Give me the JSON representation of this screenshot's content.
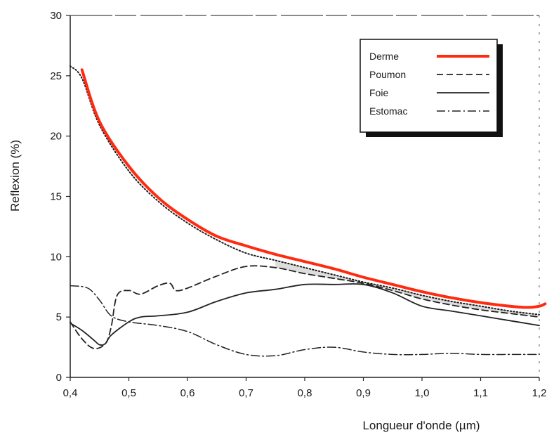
{
  "chart_data": {
    "type": "line",
    "title": "",
    "xlabel": "Longueur d'onde (µm)",
    "ylabel": "Reflexion (%)",
    "xlim": [
      0.4,
      1.2
    ],
    "ylim": [
      0,
      30
    ],
    "xticks": [
      "0,4",
      "0,5",
      "0,6",
      "0,7",
      "0,8",
      "0,9",
      "1,0",
      "1,1",
      "1,2"
    ],
    "yticks": [
      "0",
      "5",
      "10",
      "15",
      "20",
      "25",
      "30"
    ],
    "grid": false,
    "legend_position": "top-right",
    "series": [
      {
        "name": "Derme",
        "color": "#ff2a10",
        "style": "solid-thick",
        "x": [
          0.42,
          0.45,
          0.5,
          0.55,
          0.6,
          0.65,
          0.7,
          0.75,
          0.8,
          0.85,
          0.9,
          0.95,
          1.0,
          1.05,
          1.1,
          1.15,
          1.18,
          1.2,
          1.21
        ],
        "y": [
          25.5,
          21.2,
          17.5,
          14.9,
          13.1,
          11.7,
          10.9,
          10.2,
          9.6,
          9.0,
          8.3,
          7.7,
          7.1,
          6.6,
          6.2,
          5.9,
          5.8,
          5.9,
          6.1
        ]
      },
      {
        "name": "Poumon",
        "color": "#222222",
        "style": "dashed",
        "x": [
          0.4,
          0.42,
          0.44,
          0.46,
          0.47,
          0.48,
          0.5,
          0.52,
          0.55,
          0.57,
          0.58,
          0.6,
          0.65,
          0.7,
          0.75,
          0.8,
          0.85,
          0.9,
          0.95,
          1.0,
          1.05,
          1.1,
          1.15,
          1.2
        ],
        "y": [
          4.6,
          3.2,
          2.4,
          2.8,
          4.2,
          6.8,
          7.2,
          6.9,
          7.6,
          7.8,
          7.2,
          7.4,
          8.4,
          9.2,
          9.1,
          8.6,
          8.2,
          7.8,
          7.2,
          6.5,
          6.0,
          5.6,
          5.3,
          5.0
        ]
      },
      {
        "name": "Foie",
        "color": "#222222",
        "style": "solid",
        "x": [
          0.4,
          0.42,
          0.44,
          0.45,
          0.46,
          0.47,
          0.5,
          0.52,
          0.55,
          0.6,
          0.65,
          0.7,
          0.75,
          0.8,
          0.85,
          0.9,
          0.95,
          1.0,
          1.05,
          1.1,
          1.15,
          1.2
        ],
        "y": [
          4.5,
          3.9,
          3.1,
          2.7,
          2.8,
          3.5,
          4.6,
          5.0,
          5.1,
          5.4,
          6.3,
          7.0,
          7.3,
          7.7,
          7.7,
          7.7,
          7.0,
          5.9,
          5.5,
          5.1,
          4.7,
          4.3
        ]
      },
      {
        "name": "Estomac",
        "color": "#222222",
        "style": "dashdot",
        "x": [
          0.4,
          0.43,
          0.45,
          0.47,
          0.5,
          0.55,
          0.6,
          0.65,
          0.7,
          0.75,
          0.8,
          0.85,
          0.9,
          0.95,
          1.0,
          1.05,
          1.1,
          1.15,
          1.2
        ],
        "y": [
          7.6,
          7.4,
          6.4,
          5.1,
          4.6,
          4.3,
          3.8,
          2.7,
          1.9,
          1.8,
          2.3,
          2.5,
          2.1,
          1.9,
          1.9,
          2.0,
          1.9,
          1.9,
          1.9
        ]
      },
      {
        "name": "",
        "color": "#1a1a1a",
        "style": "dotted",
        "x": [
          0.4,
          0.42,
          0.45,
          0.5,
          0.55,
          0.6,
          0.65,
          0.7,
          0.75,
          0.8,
          0.85,
          0.9,
          0.95,
          1.0,
          1.05,
          1.1,
          1.15,
          1.2
        ],
        "y": [
          25.8,
          24.8,
          20.9,
          17.1,
          14.6,
          12.8,
          11.4,
          10.3,
          9.7,
          9.1,
          8.5,
          7.9,
          7.4,
          6.8,
          6.3,
          5.9,
          5.5,
          5.2
        ]
      }
    ]
  }
}
